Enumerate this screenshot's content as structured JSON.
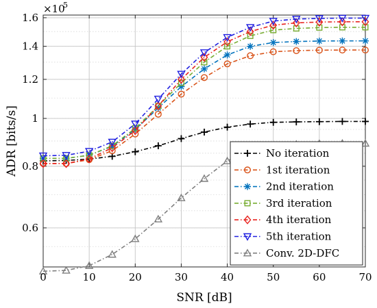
{
  "chart_data": {
    "type": "line",
    "xlabel": "SNR [dB]",
    "ylabel": "ADR [bits/s]",
    "y_multiplier_label": "×10",
    "y_multiplier_exponent": "5",
    "x_scale": "linear",
    "y_scale": "log",
    "xlim": [
      0,
      70
    ],
    "ylim": [
      0.5,
      1.62
    ],
    "x_ticks": [
      0,
      10,
      20,
      30,
      40,
      50,
      60,
      70
    ],
    "x_tick_labels": [
      "0",
      "10",
      "20",
      "30",
      "40",
      "50",
      "60",
      "70"
    ],
    "y_ticks": [
      0.6,
      0.8,
      1.0,
      1.2,
      1.4,
      1.6
    ],
    "y_tick_labels": [
      "0.6",
      "0.8",
      "1",
      "1.2",
      "1.4",
      "1.6"
    ],
    "grid": true,
    "legend_position": "bottom-right",
    "x": [
      0,
      5,
      10,
      15,
      20,
      25,
      30,
      35,
      40,
      45,
      50,
      55,
      60,
      65,
      70
    ],
    "series": [
      {
        "name": "No iteration",
        "color": "#000000",
        "marker": "plus",
        "values": [
          0.82,
          0.822,
          0.827,
          0.838,
          0.856,
          0.88,
          0.91,
          0.938,
          0.96,
          0.974,
          0.982,
          0.984,
          0.985,
          0.986,
          0.986
        ]
      },
      {
        "name": "1st iteration",
        "color": "#D95319",
        "marker": "circle",
        "values": [
          0.81,
          0.81,
          0.825,
          0.86,
          0.93,
          1.02,
          1.12,
          1.21,
          1.29,
          1.34,
          1.365,
          1.372,
          1.375,
          1.376,
          1.376
        ]
      },
      {
        "name": "2nd iteration",
        "color": "#0072BD",
        "marker": "asterisk",
        "values": [
          0.83,
          0.83,
          0.842,
          0.878,
          0.95,
          1.05,
          1.16,
          1.26,
          1.345,
          1.4,
          1.425,
          1.432,
          1.435,
          1.436,
          1.436
        ]
      },
      {
        "name": "3rd iteration",
        "color": "#77AC30",
        "marker": "square",
        "values": [
          0.83,
          0.83,
          0.842,
          0.88,
          0.955,
          1.06,
          1.18,
          1.3,
          1.4,
          1.47,
          1.51,
          1.522,
          1.528,
          1.53,
          1.53
        ]
      },
      {
        "name": "4th iteration",
        "color": "#E8231E",
        "marker": "diamond",
        "values": [
          0.81,
          0.81,
          0.828,
          0.872,
          0.945,
          1.06,
          1.2,
          1.33,
          1.43,
          1.5,
          1.545,
          1.562,
          1.568,
          1.57,
          1.57
        ]
      },
      {
        "name": "5th iteration",
        "color": "#1F1FE0",
        "marker": "triangle-down",
        "values": [
          0.84,
          0.842,
          0.858,
          0.896,
          0.975,
          1.095,
          1.23,
          1.36,
          1.46,
          1.53,
          1.575,
          1.59,
          1.595,
          1.597,
          1.597
        ]
      },
      {
        "name": "Conv. 2D-DFC",
        "color": "#7F7F7F",
        "marker": "triangle-up",
        "values": [
          0.49,
          0.492,
          0.503,
          0.53,
          0.57,
          0.625,
          0.69,
          0.755,
          0.82,
          0.863,
          0.88,
          0.886,
          0.889,
          0.89,
          0.89
        ]
      }
    ]
  }
}
